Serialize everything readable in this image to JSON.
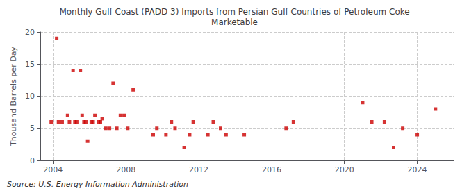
{
  "chart_data": {
    "type": "scatter",
    "title": "Monthly Gulf Coast (PADD 3) Imports from Persian Gulf Countries of Petroleum Coke\nMarketable",
    "ylabel": "Thousand Barrels per Day",
    "annotations": [
      "Source: U.S. Energy Information Administration"
    ],
    "color": "#cc0000",
    "marker": "square",
    "grid": true,
    "xlim": [
      2003.3,
      2026.0
    ],
    "xticks": [
      2004,
      2008,
      2012,
      2016,
      2020,
      2024
    ],
    "ylim": [
      0,
      20
    ],
    "yticks": [
      0,
      5,
      10,
      15,
      20
    ],
    "x": [
      2003.9,
      2004.2,
      2004.3,
      2004.5,
      2004.8,
      2004.9,
      2005.1,
      2005.2,
      2005.3,
      2005.5,
      2005.6,
      2005.7,
      2005.8,
      2005.9,
      2006.1,
      2006.2,
      2006.3,
      2006.5,
      2006.6,
      2006.7,
      2006.9,
      2007.1,
      2007.3,
      2007.5,
      2007.7,
      2007.9,
      2008.1,
      2008.4,
      2009.5,
      2009.7,
      2010.2,
      2010.5,
      2010.7,
      2011.2,
      2011.5,
      2011.7,
      2012.5,
      2012.8,
      2013.2,
      2013.5,
      2014.5,
      2016.8,
      2017.2,
      2021.0,
      2021.5,
      2022.2,
      2022.7,
      2023.2,
      2024.0,
      2025.0
    ],
    "values": [
      6.0,
      19.0,
      6.0,
      6.0,
      7.0,
      6.0,
      14.0,
      6.0,
      6.0,
      14.0,
      7.0,
      6.0,
      6.0,
      3.0,
      6.0,
      6.0,
      7.0,
      6.0,
      6.0,
      6.5,
      5.0,
      5.0,
      12.0,
      5.0,
      7.0,
      7.0,
      5.0,
      11.0,
      4.0,
      5.0,
      4.0,
      6.0,
      5.0,
      2.0,
      4.0,
      6.0,
      4.0,
      6.0,
      5.0,
      4.0,
      4.0,
      5.0,
      6.0,
      9.0,
      6.0,
      6.0,
      2.0,
      5.0,
      4.0,
      8.0
    ]
  }
}
